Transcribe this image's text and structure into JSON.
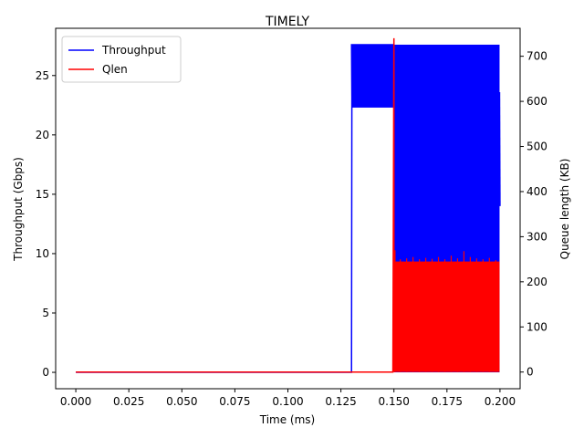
{
  "chart_data": {
    "type": "line",
    "title": "TIMELY",
    "xlabel": "Time (ms)",
    "ylabel_left": "Throughput (Gbps)",
    "ylabel_right": "Queue length (KB)",
    "xlim": [
      -0.0095,
      0.2095
    ],
    "ylim_left": [
      -1.38,
      28.98
    ],
    "ylim_right": [
      -37,
      762
    ],
    "x_ticks": [
      "0.000",
      "0.025",
      "0.050",
      "0.075",
      "0.100",
      "0.125",
      "0.150",
      "0.175",
      "0.200"
    ],
    "y_ticks_left": [
      "0",
      "5",
      "10",
      "15",
      "20",
      "25"
    ],
    "y_ticks_right": [
      "0",
      "100",
      "200",
      "300",
      "400",
      "500",
      "600",
      "700"
    ],
    "grid": false,
    "legend_position": "upper-left",
    "series": [
      {
        "name": "Throughput",
        "axis": "left",
        "color": "#0000ff",
        "segments": [
          {
            "x": [
              0.0,
              0.13,
              0.1302,
              0.1302,
              0.13,
              0.15,
              0.15
            ],
            "y": [
              0.0,
              0.0,
              27.6,
              22.3,
              27.6,
              27.6,
              22.3
            ]
          }
        ],
        "bands": [
          {
            "x": [
              0.13,
              0.15
            ],
            "y": [
              22.3,
              27.6
            ]
          },
          {
            "x": [
              0.15,
              0.1998
            ],
            "y": [
              0.0,
              27.6
            ]
          }
        ],
        "tail": {
          "x": [
            0.1998,
            0.2
          ],
          "y": [
            23.6,
            14.0
          ]
        }
      },
      {
        "name": "Qlen",
        "axis": "right",
        "color": "#ff0000",
        "segments": [
          {
            "x": [
              0.0,
              0.1495,
              0.15,
              0.15
            ],
            "y": [
              0.0,
              0.0,
              740,
              0.0
            ]
          }
        ],
        "bands": [
          {
            "x": [
              0.15,
              0.1998
            ],
            "y": [
              0.0,
              245
            ]
          }
        ],
        "spikes": {
          "x": [
            0.1505,
            0.153,
            0.156,
            0.159,
            0.162,
            0.165,
            0.168,
            0.171,
            0.174,
            0.177,
            0.18,
            0.183,
            0.186,
            0.189,
            0.192,
            0.195,
            0.198
          ],
          "y": [
            270,
            250,
            252,
            255,
            250,
            253,
            251,
            255,
            250,
            258,
            252,
            268,
            255,
            252,
            250,
            253,
            248
          ]
        }
      }
    ]
  }
}
